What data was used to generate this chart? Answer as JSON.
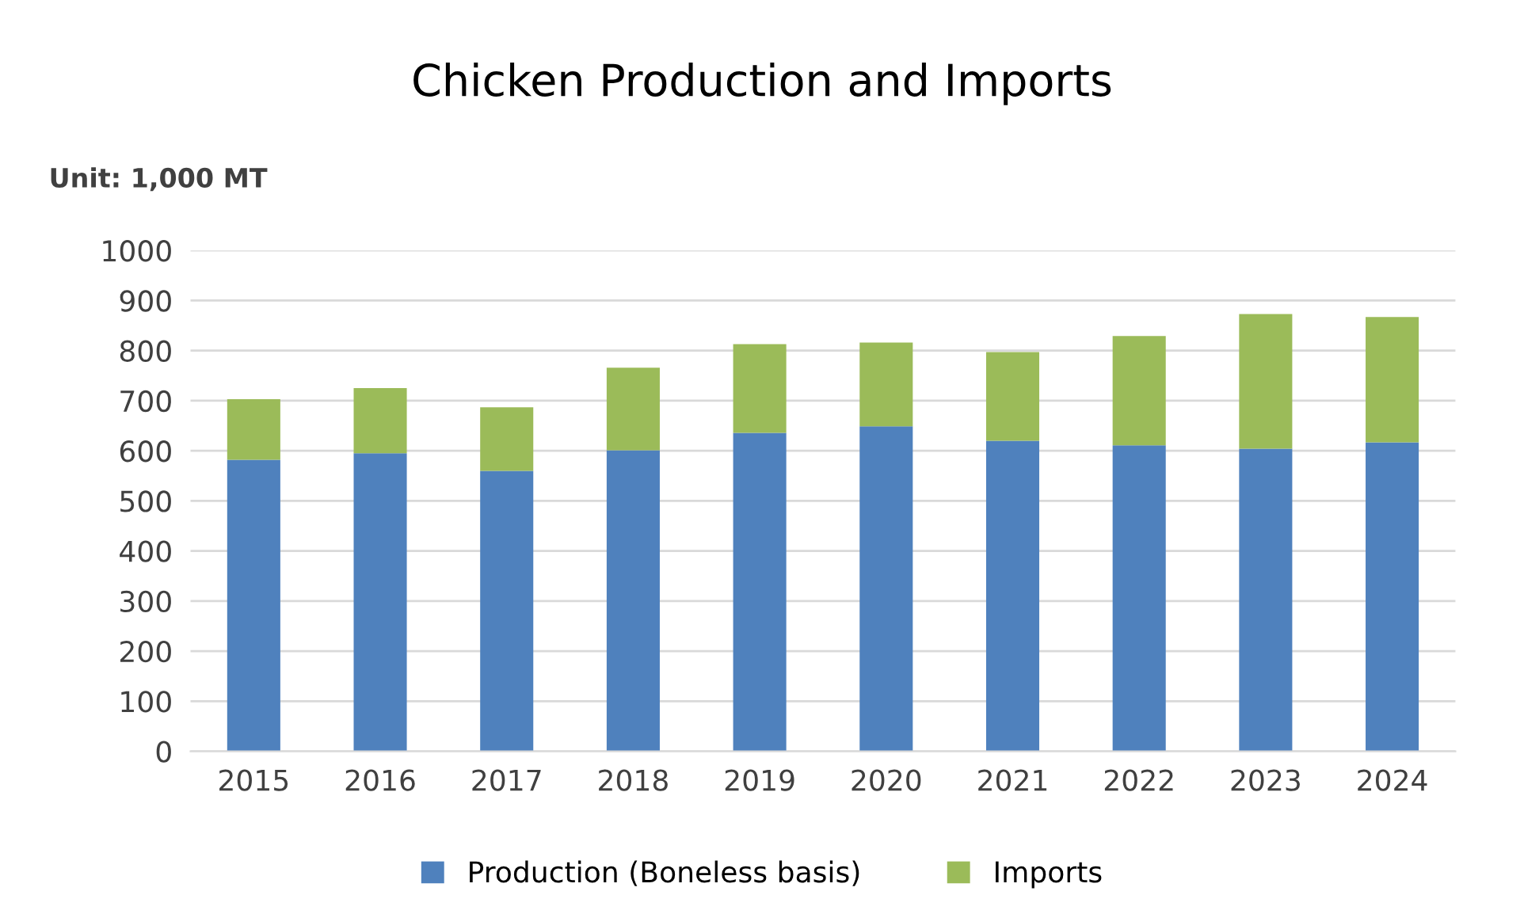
{
  "chart_data": {
    "type": "bar",
    "title": "Chicken Production and Imports",
    "annotations": [
      "Unit: 1,000 MT"
    ],
    "categories": [
      "2015",
      "2016",
      "2017",
      "2018",
      "2019",
      "2020",
      "2021",
      "2022",
      "2023",
      "2024"
    ],
    "stacked": true,
    "series": [
      {
        "name": "Production (Boneless basis)",
        "color": "#4f81bd",
        "values": [
          582,
          595,
          560,
          601,
          636,
          649,
          620,
          611,
          604,
          617
        ]
      },
      {
        "name": "Imports",
        "color": "#9bbb59",
        "values": [
          121,
          130,
          127,
          165,
          177,
          167,
          177,
          218,
          269,
          250
        ]
      }
    ],
    "ylim": [
      0,
      1000
    ],
    "yticks": [
      0,
      100,
      200,
      300,
      400,
      500,
      600,
      700,
      800,
      900,
      1000
    ],
    "grid": "y",
    "legend": "bottom"
  }
}
